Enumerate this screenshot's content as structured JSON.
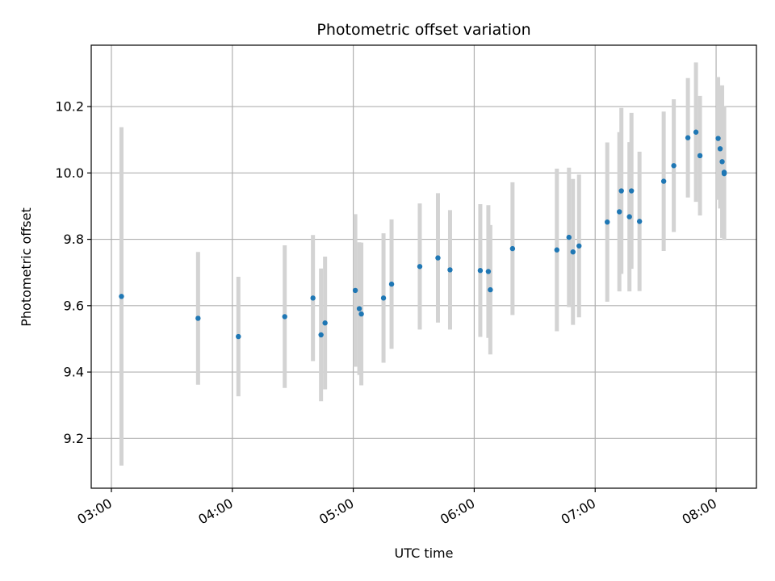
{
  "chart_data": {
    "type": "scatter",
    "title": "Photometric offset variation",
    "xlabel": "UTC time",
    "ylabel": "Photometric offset",
    "grid": true,
    "xlim": [
      "02:50",
      "08:20"
    ],
    "ylim": [
      9.05,
      10.385
    ],
    "x_ticks": [
      "03:00",
      "04:00",
      "05:00",
      "06:00",
      "07:00",
      "08:00"
    ],
    "y_ticks": [
      "9.2",
      "9.4",
      "9.6",
      "9.8",
      "10.0",
      "10.2"
    ],
    "colors": {
      "point": "#1f77b4",
      "errorbar": "#d3d3d3",
      "grid": "#b0b0b0",
      "axes": "#000000"
    },
    "series": [
      {
        "name": "Photometric offset",
        "points": [
          {
            "t": "03:05",
            "y": 9.628,
            "err": 0.51
          },
          {
            "t": "03:43",
            "y": 9.562,
            "err": 0.2
          },
          {
            "t": "04:03",
            "y": 9.507,
            "err": 0.18
          },
          {
            "t": "04:26",
            "y": 9.567,
            "err": 0.215
          },
          {
            "t": "04:40",
            "y": 9.623,
            "err": 0.19
          },
          {
            "t": "04:44",
            "y": 9.512,
            "err": 0.2
          },
          {
            "t": "04:46",
            "y": 9.548,
            "err": 0.2
          },
          {
            "t": "05:01",
            "y": 9.646,
            "err": 0.23
          },
          {
            "t": "05:03",
            "y": 9.591,
            "err": 0.2
          },
          {
            "t": "05:04",
            "y": 9.575,
            "err": 0.215
          },
          {
            "t": "05:15",
            "y": 9.623,
            "err": 0.195
          },
          {
            "t": "05:19",
            "y": 9.665,
            "err": 0.195
          },
          {
            "t": "05:33",
            "y": 9.718,
            "err": 0.19
          },
          {
            "t": "05:42",
            "y": 9.744,
            "err": 0.195
          },
          {
            "t": "05:48",
            "y": 9.708,
            "err": 0.18
          },
          {
            "t": "06:03",
            "y": 9.706,
            "err": 0.2
          },
          {
            "t": "06:07",
            "y": 9.703,
            "err": 0.2
          },
          {
            "t": "06:08",
            "y": 9.648,
            "err": 0.195
          },
          {
            "t": "06:19",
            "y": 9.772,
            "err": 0.2
          },
          {
            "t": "06:41",
            "y": 9.768,
            "err": 0.245
          },
          {
            "t": "06:47",
            "y": 9.806,
            "err": 0.21
          },
          {
            "t": "06:49",
            "y": 9.762,
            "err": 0.22
          },
          {
            "t": "06:52",
            "y": 9.78,
            "err": 0.215
          },
          {
            "t": "07:06",
            "y": 9.852,
            "err": 0.24
          },
          {
            "t": "07:12",
            "y": 9.883,
            "err": 0.24
          },
          {
            "t": "07:13",
            "y": 9.946,
            "err": 0.25
          },
          {
            "t": "07:17",
            "y": 9.868,
            "err": 0.225
          },
          {
            "t": "07:18",
            "y": 9.946,
            "err": 0.235
          },
          {
            "t": "07:22",
            "y": 9.854,
            "err": 0.21
          },
          {
            "t": "07:34",
            "y": 9.975,
            "err": 0.21
          },
          {
            "t": "07:39",
            "y": 10.022,
            "err": 0.2
          },
          {
            "t": "07:46",
            "y": 10.106,
            "err": 0.18
          },
          {
            "t": "07:50",
            "y": 10.123,
            "err": 0.21
          },
          {
            "t": "07:52",
            "y": 10.052,
            "err": 0.18
          },
          {
            "t": "08:01",
            "y": 10.104,
            "err": 0.185
          },
          {
            "t": "08:02",
            "y": 10.073,
            "err": 0.18
          },
          {
            "t": "08:03",
            "y": 10.034,
            "err": 0.23
          },
          {
            "t": "08:04",
            "y": 10.002,
            "err": 0.2
          },
          {
            "t": "08:04",
            "y": 9.998,
            "err": 0.2
          }
        ]
      }
    ]
  }
}
